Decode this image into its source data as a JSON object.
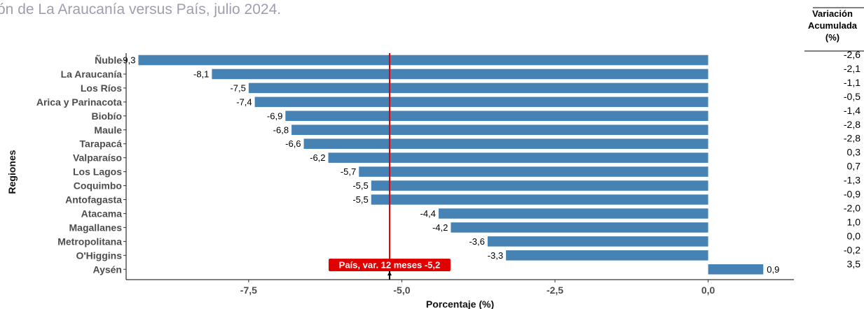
{
  "subtitle": "ón de La Araucanía versus País, julio 2024.",
  "chart_data": {
    "type": "bar",
    "orientation": "horizontal",
    "ylabel": "Regiones",
    "xlabel": "Porcentaje (%)",
    "categories": [
      "Ñuble",
      "La Araucanía",
      "Los Ríos",
      "Arica y Parinacota",
      "Biobío",
      "Maule",
      "Tarapacá",
      "Valparaíso",
      "Los Lagos",
      "Coquimbo",
      "Antofagasta",
      "Atacama",
      "Magallanes",
      "Metropolitana",
      "O'Higgins",
      "Aysén"
    ],
    "values": [
      -9.3,
      -8.1,
      -7.5,
      -7.4,
      -6.9,
      -6.8,
      -6.6,
      -6.2,
      -5.7,
      -5.5,
      -5.5,
      -4.4,
      -4.2,
      -3.6,
      -3.3,
      0.9
    ],
    "value_labels": [
      "-9,3",
      "-8,1",
      "-7,5",
      "-7,4",
      "-6,9",
      "-6,8",
      "-6,6",
      "-6,2",
      "-5,7",
      "-5,5",
      "-5,5",
      "-4,4",
      "-4,2",
      "-3,6",
      "-3,3",
      "0,9"
    ],
    "xlim": [
      -9.5,
      1.4
    ],
    "x_ticks": [
      -7.5,
      -5.0,
      -2.5,
      0.0
    ],
    "x_tick_labels": [
      "-7,5",
      "-5,0",
      "-2,5",
      "0,0"
    ],
    "bar_color": "#4682b4",
    "reference_line": {
      "value": -5.2,
      "label": "País, var. 12 meses -5,2",
      "color": "#e00000"
    },
    "side_table": {
      "header": [
        "Variación",
        "Acumulada",
        "(%)"
      ],
      "values": [
        "-2,6",
        "-2,1",
        "-1,1",
        "-0,5",
        "-1,4",
        "-2,8",
        "-2,8",
        "0,3",
        "0,7",
        "-1,3",
        "-0,9",
        "-2,0",
        "1,0",
        "0,0",
        "-0,2",
        "3,5"
      ]
    },
    "grid": false,
    "legend": "none"
  }
}
